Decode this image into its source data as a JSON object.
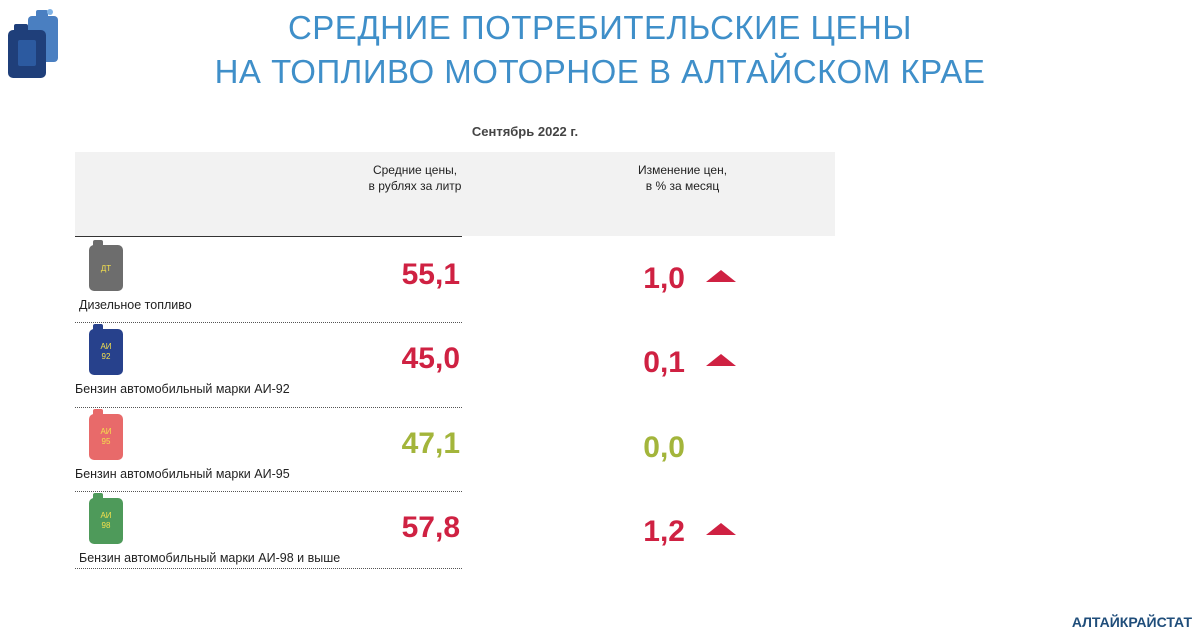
{
  "title_line1": "СРЕДНИЕ ПОТРЕБИТЕЛЬСКИЕ ЦЕНЫ",
  "title_line2": "НА ТОПЛИВО МОТОРНОЕ  В АЛТАЙСКОМ КРАЕ",
  "period": "Сентябрь 2022 г.",
  "columns": {
    "price_line1": "Средние цены,",
    "price_line2": "в рублях за литр",
    "change_line1": "Изменение цен,",
    "change_line2": "в %  за месяц"
  },
  "rows": [
    {
      "name": "Дизельное топливо",
      "can_line1": "ДТ",
      "can_line2": "",
      "can_color": "#6d6d6d",
      "price": "55,1",
      "price_color": "#cf2142",
      "change": "1,0",
      "change_color": "#cf2142",
      "trend": "up"
    },
    {
      "name": "Бензин автомобильный марки АИ-92",
      "can_line1": "АИ",
      "can_line2": "92",
      "can_color": "#27418c",
      "price": "45,0",
      "price_color": "#cf2142",
      "change": "0,1",
      "change_color": "#cf2142",
      "trend": "up"
    },
    {
      "name": "Бензин автомобильный марки АИ-95",
      "can_line1": "АИ",
      "can_line2": "95",
      "can_color": "#e86a6a",
      "price": "47,1",
      "price_color": "#a3b53b",
      "change": "0,0",
      "change_color": "#a3b53b",
      "trend": "none"
    },
    {
      "name": "Бензин автомобильный марки АИ-98 и выше",
      "can_line1": "АИ",
      "can_line2": "98",
      "can_color": "#4e9a5a",
      "price": "57,8",
      "price_color": "#cf2142",
      "change": "1,2",
      "change_color": "#cf2142",
      "trend": "up"
    }
  ],
  "footer": "АЛТАЙКРАЙСТАТ"
}
